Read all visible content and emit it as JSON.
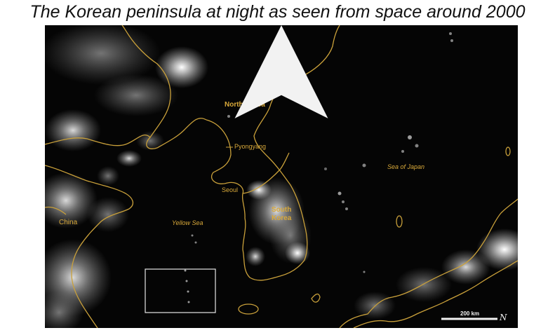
{
  "title": "The Korean peninsula at night as seen from space around 2000",
  "labels": {
    "north_korea": "North Korea",
    "pyongyang": "Pyongyang",
    "seoul": "Seoul",
    "south_korea_line1": "South",
    "south_korea_line2": "Korea",
    "sea_of_japan": "Sea of Japan",
    "yellow_sea": "Yellow Sea",
    "china": "China"
  },
  "scale_bar": {
    "text": "200 km"
  },
  "north_arrow": {
    "glyph": "N"
  },
  "colors": {
    "border": "#c9a03a",
    "label": "#d9a93a",
    "lights": "#ffffff",
    "background": "#050505"
  },
  "icons": [
    "north-arrow-icon"
  ]
}
